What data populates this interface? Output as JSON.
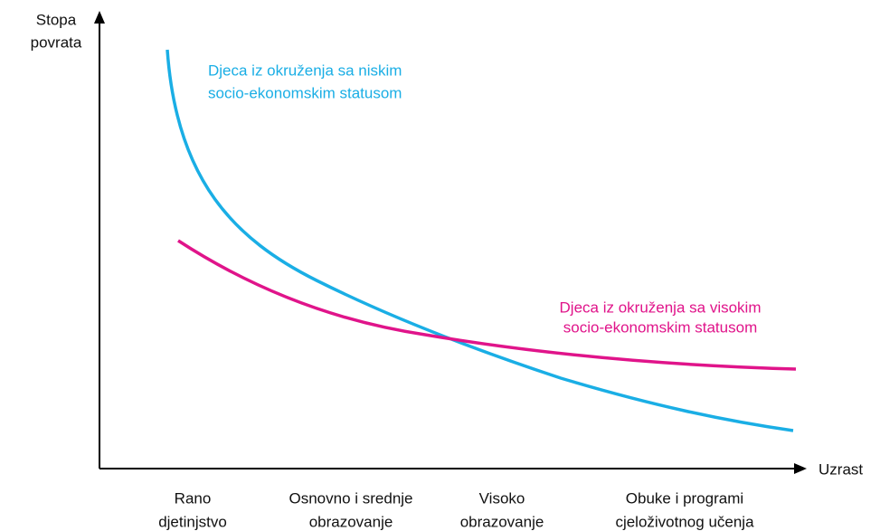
{
  "axes": {
    "y_label": [
      "Stopa",
      "povrata"
    ],
    "x_label": "Uzrast"
  },
  "categories": [
    [
      "Rano",
      "djetinjstvo"
    ],
    [
      "Osnovno i srednje",
      "obrazovanje"
    ],
    [
      "Visoko",
      "obrazovanje"
    ],
    [
      "Obuke i programi",
      "cjeloživotnog učenja"
    ]
  ],
  "curves": [
    {
      "label": [
        "Djeca iz okruženja sa niskim",
        "socio-ekonomskim statusom"
      ]
    },
    {
      "label": [
        "Djeca iz okruženja sa visokim",
        "socio-ekonomskim statusom"
      ]
    }
  ]
}
